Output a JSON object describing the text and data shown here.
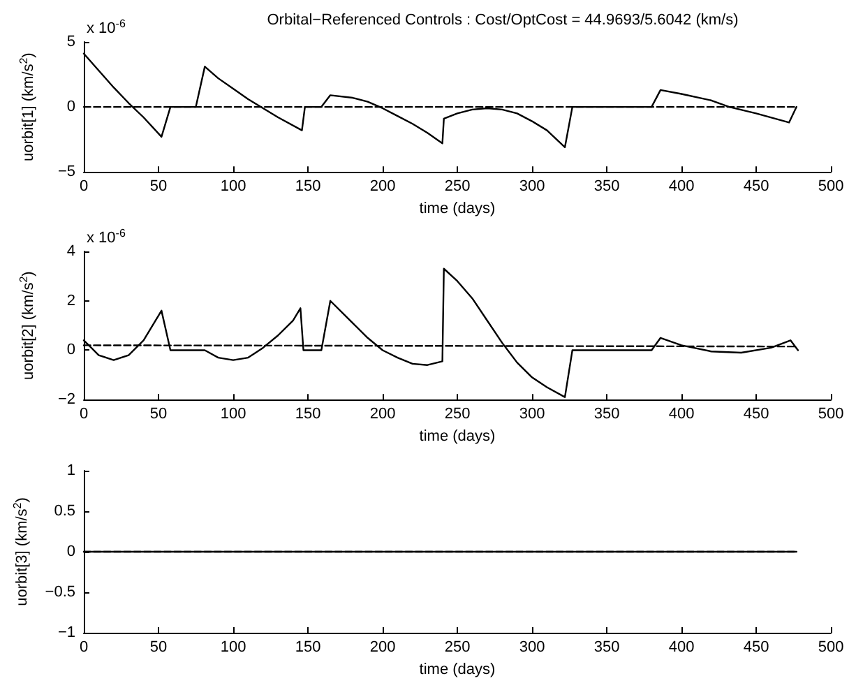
{
  "chart_data": [
    {
      "type": "line",
      "title": "Orbital−Referenced Controls : Cost/OptCost = 44.9693/5.6042 (km/s)",
      "xlabel": "time (days)",
      "ylabel": "uorbit[1] (km/s$^{2}$)",
      "annotations": [
        "x 10$^{-6}$"
      ],
      "marker": "none",
      "xlim": [
        0,
        500
      ],
      "xticks": [
        0,
        50,
        100,
        150,
        200,
        250,
        300,
        350,
        400,
        450,
        500
      ],
      "ylim": [
        -5,
        5
      ],
      "yticks": [
        {
          "value": -5,
          "label": "−5"
        },
        0,
        5
      ],
      "series": [
        {
          "color": "#000000",
          "line_style": "solid",
          "x": [
            0,
            10,
            20,
            30,
            40,
            52,
            58,
            75,
            81,
            90,
            100,
            110,
            120,
            130,
            146,
            148,
            159,
            165,
            180,
            190,
            200,
            210,
            220,
            230,
            240,
            241,
            250,
            260,
            270,
            280,
            290,
            300,
            310,
            322,
            327,
            380,
            386,
            400,
            420,
            432,
            450,
            472,
            477
          ],
          "values": [
            4.1,
            2.8,
            1.5,
            0.3,
            -0.8,
            -2.3,
            0,
            0,
            3.1,
            2.2,
            1.4,
            0.6,
            -0.1,
            -0.8,
            -1.8,
            0,
            0,
            0.9,
            0.7,
            0.4,
            -0.1,
            -0.7,
            -1.3,
            -2.0,
            -2.8,
            -0.9,
            -0.5,
            -0.2,
            -0.1,
            -0.2,
            -0.5,
            -1.1,
            -1.8,
            -3.1,
            0,
            0,
            1.3,
            1.0,
            0.5,
            0,
            -0.5,
            -1.2,
            0
          ]
        },
        {
          "color": "#000000",
          "line_style": "dashed",
          "x": [
            0,
            477
          ],
          "values": [
            0,
            0
          ]
        }
      ]
    },
    {
      "type": "line",
      "xlabel": "time (days)",
      "ylabel": "uorbit[2] (km/s$^{2}$)",
      "annotations": [
        "x 10$^{-6}$"
      ],
      "marker": "none",
      "xlim": [
        0,
        500
      ],
      "xticks": [
        0,
        50,
        100,
        150,
        200,
        250,
        300,
        350,
        400,
        450,
        500
      ],
      "ylim": [
        -2,
        4
      ],
      "yticks": [
        {
          "value": -2,
          "label": "−2"
        },
        0,
        2,
        4
      ],
      "series": [
        {
          "color": "#000000",
          "line_style": "solid",
          "x": [
            0,
            5,
            10,
            20,
            30,
            40,
            52,
            58,
            81,
            90,
            100,
            110,
            120,
            130,
            140,
            145,
            147,
            159,
            165,
            180,
            190,
            200,
            210,
            220,
            230,
            240,
            241,
            250,
            260,
            270,
            280,
            290,
            300,
            310,
            322,
            327,
            380,
            386,
            400,
            420,
            440,
            460,
            473,
            478
          ],
          "values": [
            0.4,
            0.1,
            -0.2,
            -0.4,
            -0.2,
            0.4,
            1.6,
            0,
            0,
            -0.3,
            -0.4,
            -0.3,
            0.1,
            0.6,
            1.2,
            1.7,
            0,
            0,
            2.0,
            1.1,
            0.5,
            0.0,
            -0.3,
            -0.55,
            -0.6,
            -0.45,
            3.3,
            2.8,
            2.1,
            1.2,
            0.3,
            -0.5,
            -1.1,
            -1.5,
            -1.9,
            0,
            0,
            0.5,
            0.2,
            -0.05,
            -0.1,
            0.1,
            0.4,
            0
          ]
        },
        {
          "color": "#000000",
          "line_style": "dashed",
          "x": [
            0,
            477
          ],
          "values": [
            0.2,
            0.15
          ]
        }
      ]
    },
    {
      "type": "line",
      "xlabel": "time (days)",
      "ylabel": "uorbit[3] (km/s$^{2}$)",
      "marker": "none",
      "xlim": [
        0,
        500
      ],
      "xticks": [
        0,
        50,
        100,
        150,
        200,
        250,
        300,
        350,
        400,
        450,
        500
      ],
      "ylim": [
        -1,
        1
      ],
      "yticks": [
        {
          "value": -1,
          "label": "−1"
        },
        {
          "value": -0.5,
          "label": "−0.5"
        },
        0,
        0.5,
        1
      ],
      "series": [
        {
          "color": "#000000",
          "line_style": "solid",
          "x": [
            0,
            477
          ],
          "values": [
            0,
            0
          ]
        },
        {
          "color": "#000000",
          "line_style": "dashed",
          "x": [
            0,
            477
          ],
          "values": [
            0,
            0
          ]
        }
      ]
    }
  ]
}
